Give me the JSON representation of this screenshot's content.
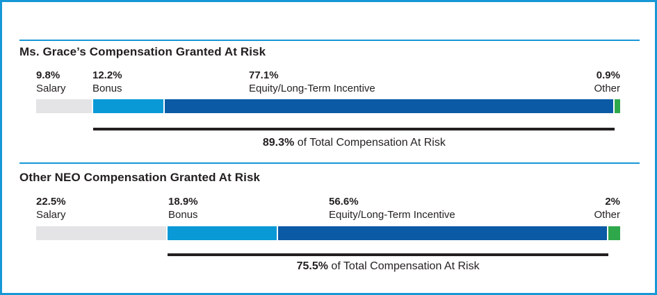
{
  "frame": {
    "border_color": "#1598d5",
    "divider_color": "#1598d5"
  },
  "palette": {
    "salary": "#e4e4e6",
    "bonus": "#0999d6",
    "equity": "#0a5aa5",
    "other": "#2fa84c",
    "underline": "#231f20"
  },
  "chart_data": [
    {
      "type": "bar",
      "stacked": true,
      "title": "Ms. Grace’s Compensation Granted At Risk",
      "categories": [
        "Salary",
        "Bonus",
        "Equity/Long-Term Incentive",
        "Other"
      ],
      "values": [
        9.8,
        12.2,
        77.1,
        0.9
      ],
      "segments": [
        {
          "name": "Salary",
          "pct_label": "9.8%",
          "value": 9.8,
          "color_key": "salary"
        },
        {
          "name": "Bonus",
          "pct_label": "12.2%",
          "value": 12.2,
          "color_key": "bonus"
        },
        {
          "name": "Equity/Long-Term Incentive",
          "pct_label": "77.1%",
          "value": 77.1,
          "color_key": "equity"
        },
        {
          "name": "Other",
          "pct_label": "0.9%",
          "value": 0.9,
          "color_key": "other"
        }
      ],
      "at_risk": {
        "pct_label": "89.3%",
        "value": 89.3,
        "suffix": " of Total Compensation At Risk"
      }
    },
    {
      "type": "bar",
      "stacked": true,
      "title": "Other NEO Compensation Granted At Risk",
      "categories": [
        "Salary",
        "Bonus",
        "Equity/Long-Term Incentive",
        "Other"
      ],
      "values": [
        22.5,
        18.9,
        56.6,
        2
      ],
      "segments": [
        {
          "name": "Salary",
          "pct_label": "22.5%",
          "value": 22.5,
          "color_key": "salary"
        },
        {
          "name": "Bonus",
          "pct_label": "18.9%",
          "value": 18.9,
          "color_key": "bonus"
        },
        {
          "name": "Equity/Long-Term Incentive",
          "pct_label": "56.6%",
          "value": 56.6,
          "color_key": "equity"
        },
        {
          "name": "Other",
          "pct_label": "2%",
          "value": 2,
          "color_key": "other"
        }
      ],
      "at_risk": {
        "pct_label": "75.5%",
        "value": 75.5,
        "suffix": " of Total Compensation At Risk"
      }
    }
  ]
}
